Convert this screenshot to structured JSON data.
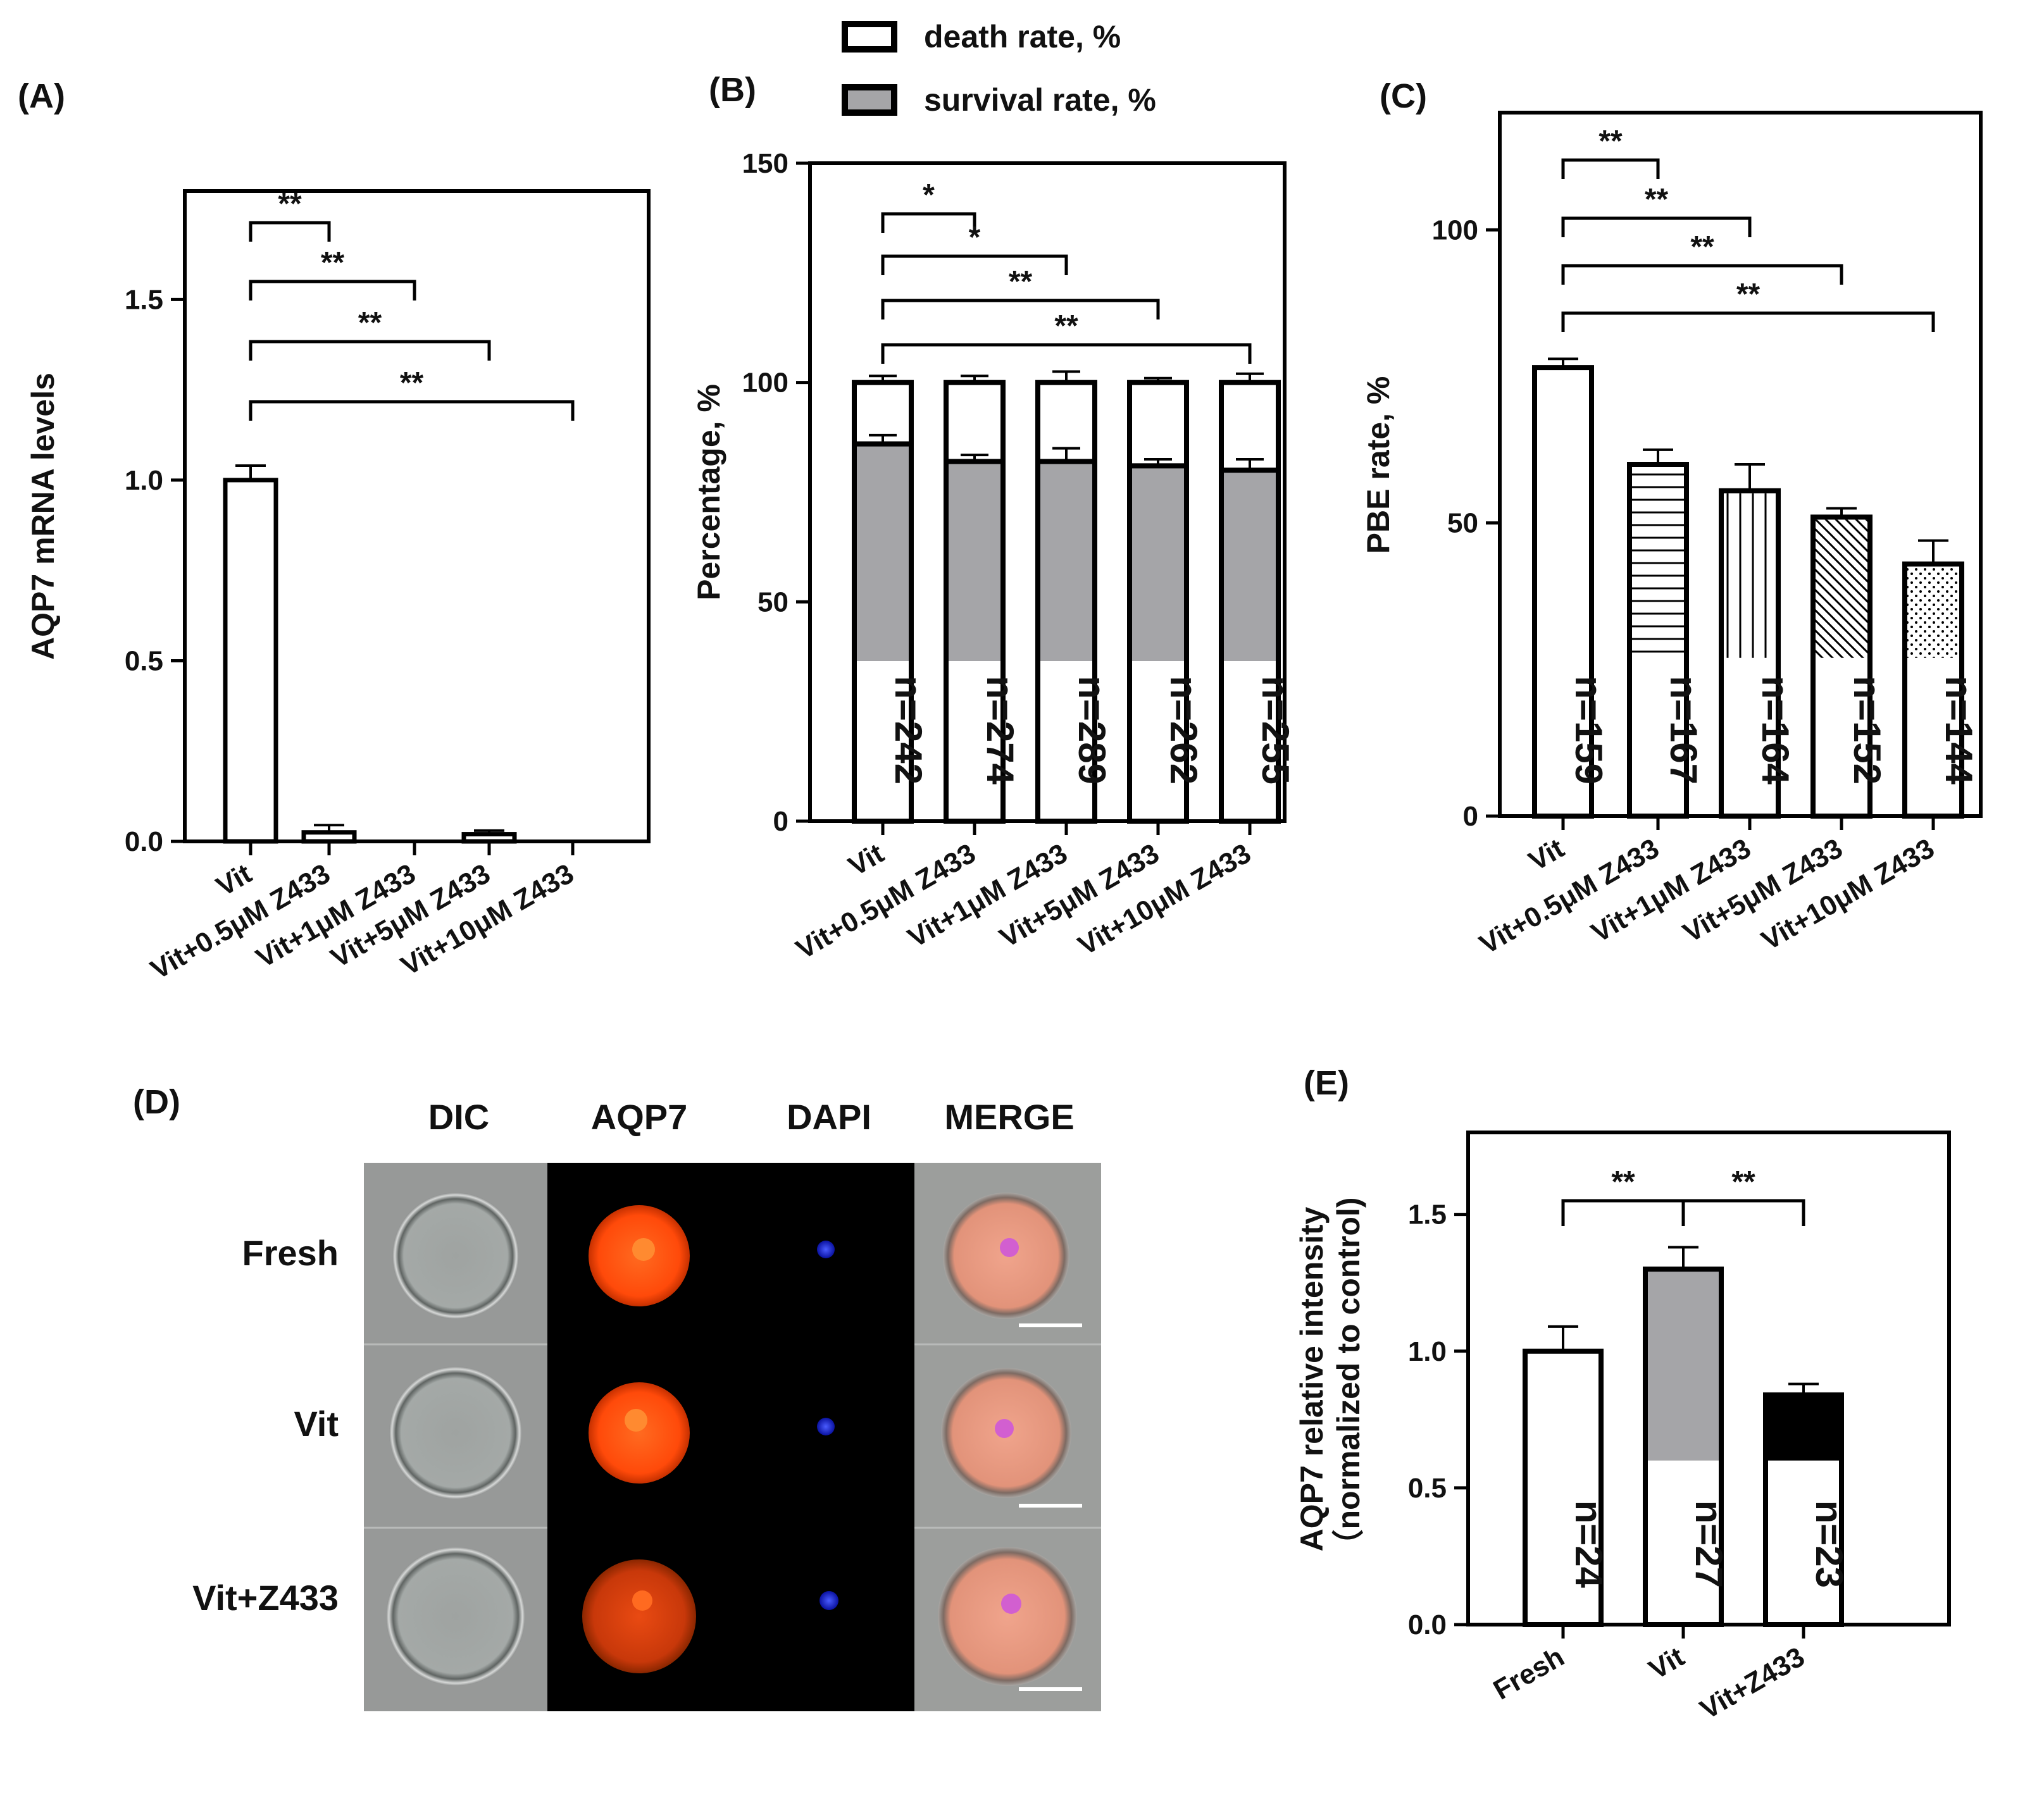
{
  "colors": {
    "survival": "#a5a5a8",
    "white": "#ffffff",
    "black": "#000000",
    "dic": "#9a9c9b",
    "aqp7": "#ff4a0a",
    "dapi": "#1f2fe0",
    "merge": "#e58f76"
  },
  "legend": {
    "death_label": "death rate, %",
    "survival_label": "survival rate, %"
  },
  "chart_data": [
    {
      "id": "A",
      "panel_label": "(A)",
      "type": "bar",
      "categories": [
        "Vit",
        "Vit+0.5μM Z433",
        "Vit+1μM Z433",
        "Vit+5μM Z433",
        "Vit+10μM Z433"
      ],
      "values": [
        1.0,
        0.025,
        0.0,
        0.02,
        0.0
      ],
      "errors": [
        0.04,
        0.02,
        0.0,
        0.01,
        0.0
      ],
      "ylabel": "AQP7 mRNA levels",
      "ylim": [
        0,
        1.8
      ],
      "yticks": [
        "0.0",
        "0.5",
        "1.0",
        "1.5"
      ],
      "significance": [
        {
          "from": 0,
          "to": 1,
          "label": "**"
        },
        {
          "from": 0,
          "to": 2,
          "label": "**"
        },
        {
          "from": 0,
          "to": 3,
          "label": "**"
        },
        {
          "from": 0,
          "to": 4,
          "label": "**"
        }
      ]
    },
    {
      "id": "B",
      "panel_label": "(B)",
      "type": "bar",
      "stacked": true,
      "categories": [
        "Vit",
        "Vit+0.5μM Z433",
        "Vit+1μM Z433",
        "Vit+5μM Z433",
        "Vit+10μM Z433"
      ],
      "series": [
        {
          "name": "survival rate, %",
          "values": [
            86,
            82,
            82,
            81,
            80
          ],
          "errors": [
            2,
            1.5,
            3,
            1.5,
            2.5
          ]
        },
        {
          "name": "death rate, %",
          "values": [
            14,
            18,
            18,
            19,
            20
          ],
          "errors": [
            1.5,
            1.5,
            2.5,
            1,
            2
          ]
        }
      ],
      "n_labels": [
        "n=242",
        "n=274",
        "n=289",
        "n=262",
        "n=255"
      ],
      "ylabel": "Percentage, %",
      "ylim": [
        0,
        150
      ],
      "yticks": [
        "0",
        "50",
        "100",
        "150"
      ],
      "significance": [
        {
          "from": 0,
          "to": 1,
          "label": "*"
        },
        {
          "from": 0,
          "to": 2,
          "label": "*"
        },
        {
          "from": 0,
          "to": 3,
          "label": "**"
        },
        {
          "from": 0,
          "to": 4,
          "label": "**"
        }
      ]
    },
    {
      "id": "C",
      "panel_label": "(C)",
      "type": "bar",
      "categories": [
        "Vit",
        "Vit+0.5μM  Z433",
        "Vit+1μM Z433",
        "Vit+5μM Z433",
        "Vit+10μM Z433"
      ],
      "values": [
        76.5,
        60,
        55.5,
        51,
        43
      ],
      "errors": [
        1.5,
        2.5,
        4.5,
        1.5,
        4
      ],
      "patterns": [
        "solid",
        "horizontal",
        "vertical",
        "diagonal",
        "dots"
      ],
      "n_labels": [
        "n=159",
        "n=167",
        "n=164",
        "n=152",
        "n=144"
      ],
      "ylabel": "PBE rate, %",
      "ylim": [
        0,
        120
      ],
      "yticks": [
        "0",
        "50",
        "100"
      ],
      "significance": [
        {
          "from": 0,
          "to": 1,
          "label": "**"
        },
        {
          "from": 0,
          "to": 2,
          "label": "**"
        },
        {
          "from": 0,
          "to": 3,
          "label": "**"
        },
        {
          "from": 0,
          "to": 4,
          "label": "**"
        }
      ]
    },
    {
      "id": "E",
      "panel_label": "(E)",
      "type": "bar",
      "categories": [
        "Fresh",
        "Vit",
        "Vit+Z433"
      ],
      "values": [
        1.0,
        1.3,
        0.84
      ],
      "errors": [
        0.09,
        0.08,
        0.04
      ],
      "fills": [
        "white",
        "survival",
        "black"
      ],
      "n_labels": [
        "n=24",
        "n=27",
        "n=23"
      ],
      "ylabel": "AQP7 relative intensity",
      "ylabel2": "（normalized to control)",
      "ylim": [
        0,
        1.8
      ],
      "yticks": [
        "0.0",
        "0.5",
        "1.0",
        "1.5"
      ],
      "significance": [
        {
          "from": 0,
          "to": 1,
          "label": "**"
        },
        {
          "from": 1,
          "to": 2,
          "label": "**"
        }
      ]
    }
  ],
  "microscopy": {
    "panel_label": "(D)",
    "columns": [
      "DIC",
      "AQP7",
      "DAPI",
      "MERGE"
    ],
    "rows": [
      "Fresh",
      "Vit",
      "Vit+Z433"
    ]
  }
}
